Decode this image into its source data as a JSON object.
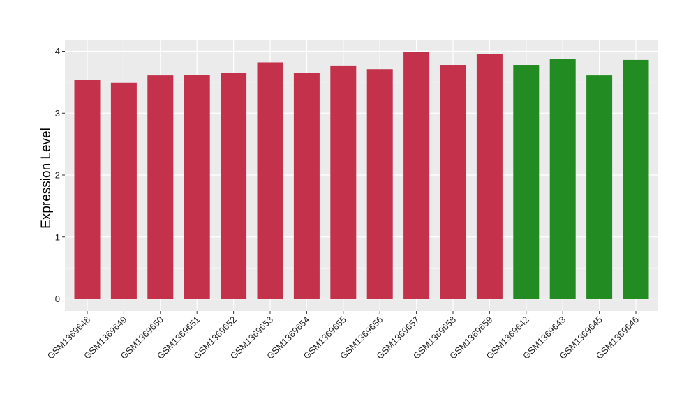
{
  "chart_data": {
    "type": "bar",
    "title": "",
    "xlabel": "",
    "ylabel": "Expression Level",
    "ylim": [
      0,
      4.2
    ],
    "yticks": [
      0,
      1,
      2,
      3,
      4
    ],
    "grid": true,
    "legend": "none",
    "categories": [
      "GSM1369648",
      "GSM1369649",
      "GSM1369650",
      "GSM1369651",
      "GSM1369652",
      "GSM1369653",
      "GSM1369654",
      "GSM1369655",
      "GSM1369656",
      "GSM1369657",
      "GSM1369658",
      "GSM1369659",
      "GSM1369642",
      "GSM1369643",
      "GSM1369645",
      "GSM1369646"
    ],
    "values": [
      3.54,
      3.49,
      3.61,
      3.62,
      3.65,
      3.82,
      3.65,
      3.77,
      3.71,
      3.99,
      3.78,
      3.96,
      3.78,
      3.88,
      3.61,
      3.86
    ],
    "bar_colors": [
      "#c3314b",
      "#c3314b",
      "#c3314b",
      "#c3314b",
      "#c3314b",
      "#c3314b",
      "#c3314b",
      "#c3314b",
      "#c3314b",
      "#c3314b",
      "#c3314b",
      "#c3314b",
      "#228b22",
      "#228b22",
      "#228b22",
      "#228b22"
    ]
  },
  "colors": {
    "panel_background": "#ebebeb",
    "gridline": "#ffffff",
    "axis_tick": "#333333"
  }
}
